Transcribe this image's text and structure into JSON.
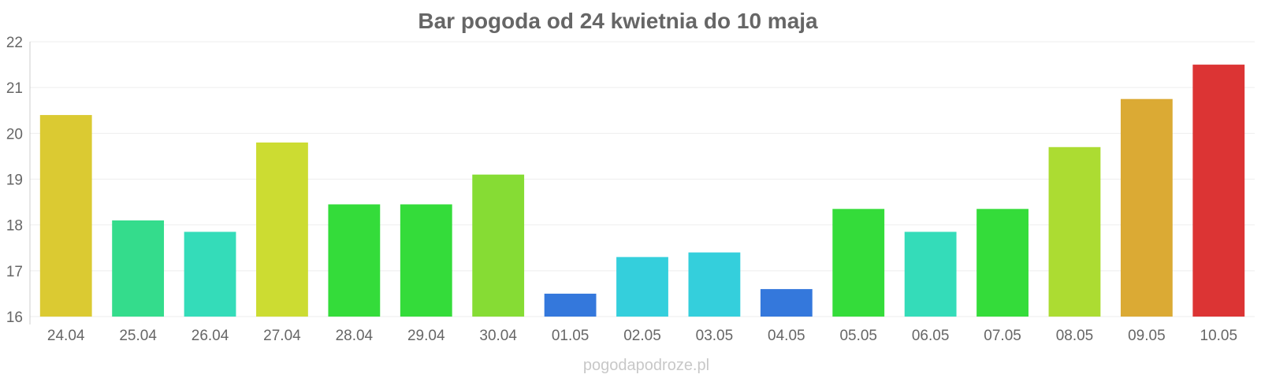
{
  "chart_data": {
    "type": "bar",
    "title": "Bar pogoda od 24 kwietnia do 10 maja",
    "xlabel": "",
    "ylabel": "",
    "ylim": [
      16,
      22
    ],
    "yticks": [
      16,
      17,
      18,
      19,
      20,
      21,
      22
    ],
    "grid": true,
    "legend": "none",
    "categories": [
      "24.04",
      "25.04",
      "26.04",
      "27.04",
      "28.04",
      "29.04",
      "30.04",
      "01.05",
      "02.05",
      "03.05",
      "04.05",
      "05.05",
      "06.05",
      "07.05",
      "08.05",
      "09.05",
      "10.05"
    ],
    "values": [
      20.4,
      18.1,
      17.85,
      19.8,
      18.45,
      18.45,
      19.1,
      16.5,
      17.3,
      17.4,
      16.6,
      18.35,
      17.85,
      18.35,
      19.7,
      20.75,
      21.5
    ],
    "colors": [
      "#dbca32",
      "#34dc8c",
      "#34dcb9",
      "#ccdc32",
      "#34dc3a",
      "#34dc3a",
      "#86dc34",
      "#3478dc",
      "#34cfdc",
      "#34cfdc",
      "#3478dc",
      "#34dc3a",
      "#34dcb9",
      "#34dc3a",
      "#acdc32",
      "#dbaa34",
      "#dc3434"
    ]
  },
  "watermark": "pogodapodroze.pl"
}
